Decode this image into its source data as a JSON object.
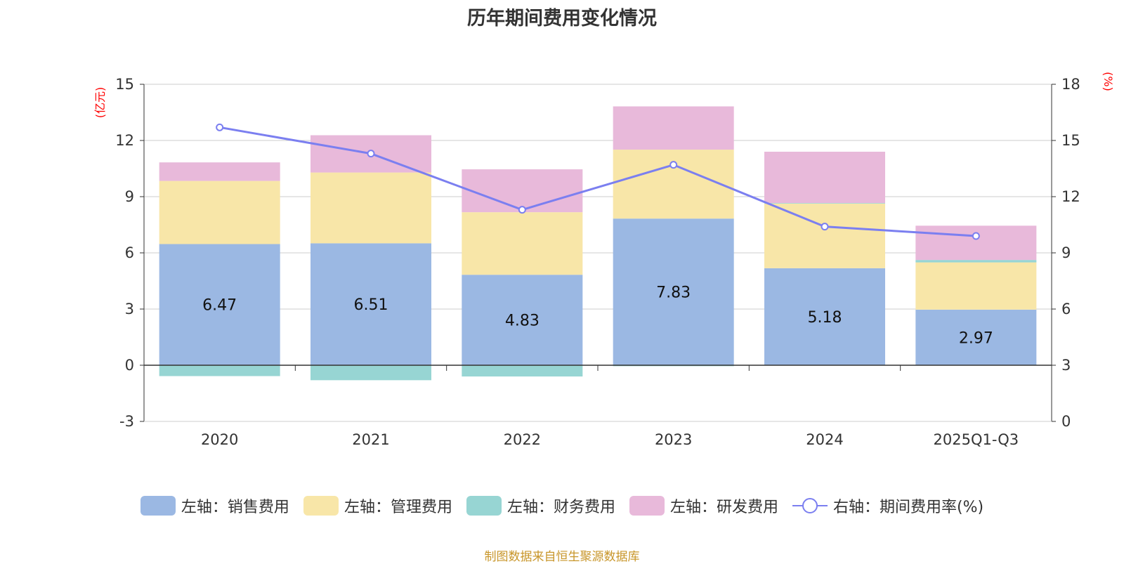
{
  "chart_data": {
    "type": "bar",
    "title": "历年期间费用变化情况",
    "categories": [
      "2020",
      "2021",
      "2022",
      "2023",
      "2024",
      "2025Q1-Q3"
    ],
    "left_axis": {
      "unit": "(亿元)",
      "ylim": [
        -3,
        15
      ],
      "ticks": [
        "15",
        "12",
        "9",
        "6",
        "3",
        "0",
        "-3"
      ]
    },
    "right_axis": {
      "unit": "(%)",
      "ylim": [
        0,
        18
      ],
      "ticks": [
        "18",
        "15",
        "12",
        "9",
        "6",
        "3",
        "0"
      ]
    },
    "series": [
      {
        "name": "左轴：销售费用",
        "axis": "left",
        "stacked": true,
        "color": "#9bb8e3",
        "values": [
          6.47,
          6.51,
          4.83,
          7.83,
          5.18,
          2.97
        ],
        "labels": [
          "6.47",
          "6.51",
          "4.83",
          "7.83",
          "5.18",
          "2.97"
        ]
      },
      {
        "name": "左轴：管理费用",
        "axis": "left",
        "stacked": true,
        "color": "#f8e6a8",
        "values": [
          3.37,
          3.78,
          3.34,
          3.68,
          3.45,
          2.52
        ]
      },
      {
        "name": "左轴：财务费用",
        "axis": "left",
        "stacked": true,
        "color": "#97d5d3",
        "values": [
          -0.58,
          -0.8,
          -0.6,
          -0.05,
          0.03,
          0.13
        ]
      },
      {
        "name": "左轴：研发费用",
        "axis": "left",
        "stacked": true,
        "color": "#e8b9da",
        "values": [
          0.99,
          1.99,
          2.29,
          2.31,
          2.74,
          1.83
        ]
      },
      {
        "name": "右轴：期间费用率(%)",
        "axis": "right",
        "type": "line",
        "color": "#7b7ff0",
        "values": [
          15.7,
          14.3,
          11.3,
          13.7,
          10.4,
          9.9
        ]
      }
    ],
    "grid": true,
    "legend_position": "bottom"
  },
  "source": "制图数据来自恒生聚源数据库"
}
